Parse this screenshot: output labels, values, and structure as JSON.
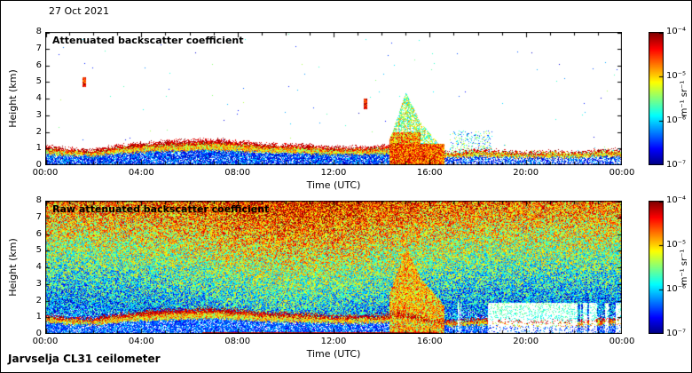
{
  "figure": {
    "date": "27 Oct 2021",
    "instrument": "Jarvselja CL31 ceilometer"
  },
  "chart_data": [
    {
      "type": "heatmap",
      "title": "Attenuated backscatter coefficient",
      "xlabel": "Time (UTC)",
      "ylabel": "Height (km)",
      "x_ticks": [
        "00:00",
        "04:00",
        "08:00",
        "12:00",
        "16:00",
        "20:00",
        "00:00"
      ],
      "x_range_hours": [
        0,
        24
      ],
      "y_ticks": [
        0,
        1,
        2,
        3,
        4,
        5,
        6,
        7,
        8
      ],
      "y_range_km": [
        0,
        8
      ],
      "grid": false,
      "colormap": "jet",
      "legend_position": "right-colorbar",
      "colorbar": {
        "label": "m⁻¹ sr⁻¹",
        "ticks": [
          "10⁻⁴",
          "10⁻⁵",
          "10⁻⁶",
          "10⁻⁷"
        ],
        "max": "1e-4",
        "min": "1e-7",
        "scale": "log"
      },
      "aerosol_layer": {
        "hours": [
          0,
          1,
          2,
          3,
          4,
          5,
          6,
          7,
          8,
          9,
          10,
          11,
          12,
          13,
          14,
          14.8,
          15.5,
          16,
          17,
          18,
          19,
          20,
          21,
          22,
          23,
          24
        ],
        "top_km": [
          1.15,
          1.0,
          0.95,
          1.2,
          1.35,
          1.45,
          1.5,
          1.55,
          1.45,
          1.3,
          1.25,
          1.2,
          1.1,
          1.1,
          1.15,
          1.3,
          1.1,
          0.85,
          0.8,
          0.95,
          0.85,
          0.8,
          0.85,
          0.8,
          0.9,
          0.95
        ]
      },
      "plume_profile": {
        "hours": [
          14.3,
          15.0,
          15.6,
          16.6
        ],
        "top_km": [
          1.5,
          4.4,
          2.6,
          0.9
        ]
      },
      "specks": [
        {
          "hour": 1.6,
          "height_km": 5.0
        },
        {
          "hour": 13.3,
          "height_km": 3.7
        }
      ]
    },
    {
      "type": "heatmap",
      "title": "Raw attenuated backscatter coefficient",
      "xlabel": "Time (UTC)",
      "ylabel": "Height (km)",
      "x_ticks": [
        "00:00",
        "04:00",
        "08:00",
        "12:00",
        "16:00",
        "20:00",
        "00:00"
      ],
      "x_range_hours": [
        0,
        24
      ],
      "y_ticks": [
        0,
        1,
        2,
        3,
        4,
        5,
        6,
        7,
        8
      ],
      "y_range_km": [
        0,
        8
      ],
      "grid": false,
      "colormap": "jet",
      "legend_position": "right-colorbar",
      "colorbar": {
        "label": "m⁻¹ sr⁻¹",
        "ticks": [
          "10⁻⁴",
          "10⁻⁵",
          "10⁻⁶",
          "10⁻⁷"
        ],
        "max": "1e-4",
        "min": "1e-7",
        "scale": "log"
      },
      "aerosol_layer": {
        "hours": [
          0,
          1,
          2,
          3,
          4,
          5,
          6,
          7,
          8,
          9,
          10,
          11,
          12,
          13,
          14,
          14.8,
          15.5,
          16,
          17,
          18,
          19,
          20,
          21,
          22,
          23,
          24
        ],
        "top_km": [
          1.15,
          1.0,
          0.95,
          1.2,
          1.35,
          1.45,
          1.5,
          1.55,
          1.45,
          1.3,
          1.25,
          1.2,
          1.1,
          1.1,
          1.15,
          1.3,
          1.1,
          0.85,
          0.8,
          0.95,
          0.85,
          0.8,
          0.85,
          0.8,
          0.9,
          0.95
        ]
      },
      "plume_profile": {
        "hours": [
          14.3,
          15.0,
          15.6,
          16.6
        ],
        "top_km": [
          1.5,
          4.4,
          2.6,
          0.9
        ]
      },
      "noise": {
        "base": 0.12,
        "height_gain_per_km": 0.08,
        "day_boost": 0.13,
        "day_center_hour": 10.5,
        "day_sigma_hours": 3.5
      }
    }
  ]
}
